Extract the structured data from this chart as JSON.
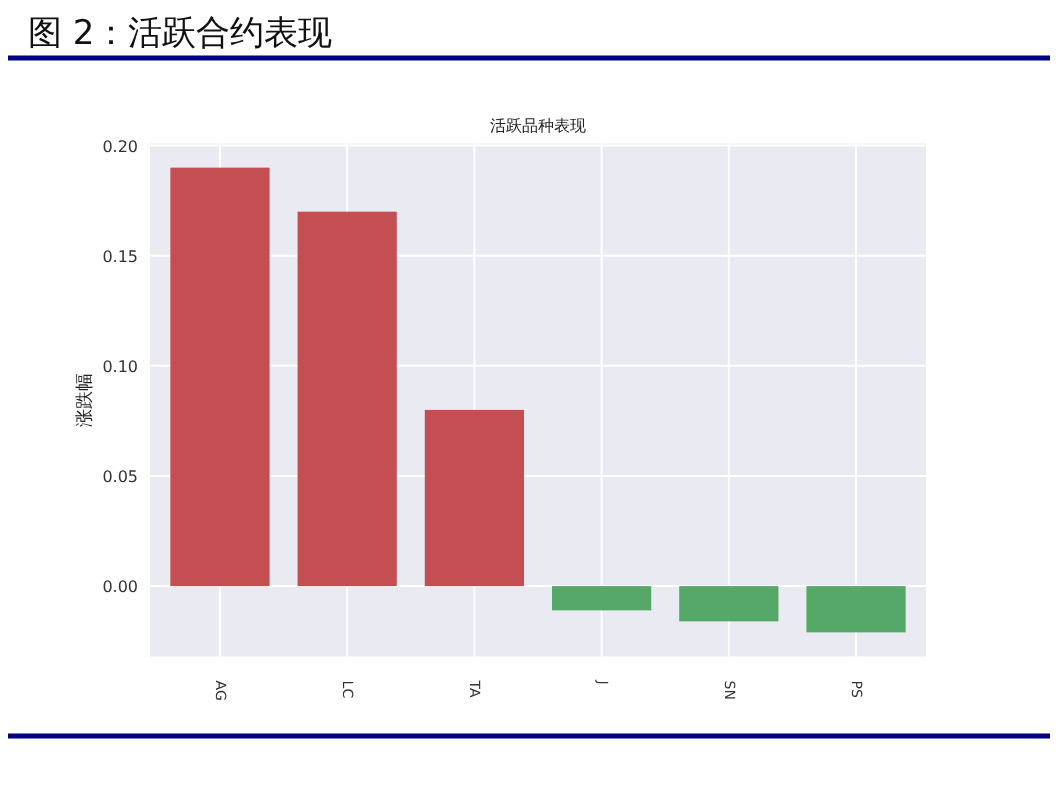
{
  "chart_data": {
    "type": "bar",
    "title": "活跃品种表现",
    "subtitle": "图 2：活跃合约表现",
    "ylabel": "涨跌幅",
    "categories": [
      "AG",
      "LC",
      "TA",
      "J",
      "SN",
      "PS"
    ],
    "values": [
      0.19,
      0.17,
      0.08,
      -0.011,
      -0.016,
      -0.021
    ],
    "colors": [
      "#c44e52",
      "#c44e52",
      "#c44e52",
      "#55a868",
      "#55a868",
      "#55a868"
    ],
    "ylim": [
      -0.032,
      0.201
    ],
    "yticks": [
      {
        "value": 0,
        "label": "0.00"
      },
      {
        "value": 0.05,
        "label": "0.05"
      },
      {
        "value": 0.1,
        "label": "0.10"
      },
      {
        "value": 0.15,
        "label": "0.15"
      },
      {
        "value": 0.2,
        "label": "0.20"
      }
    ],
    "grid": true
  }
}
